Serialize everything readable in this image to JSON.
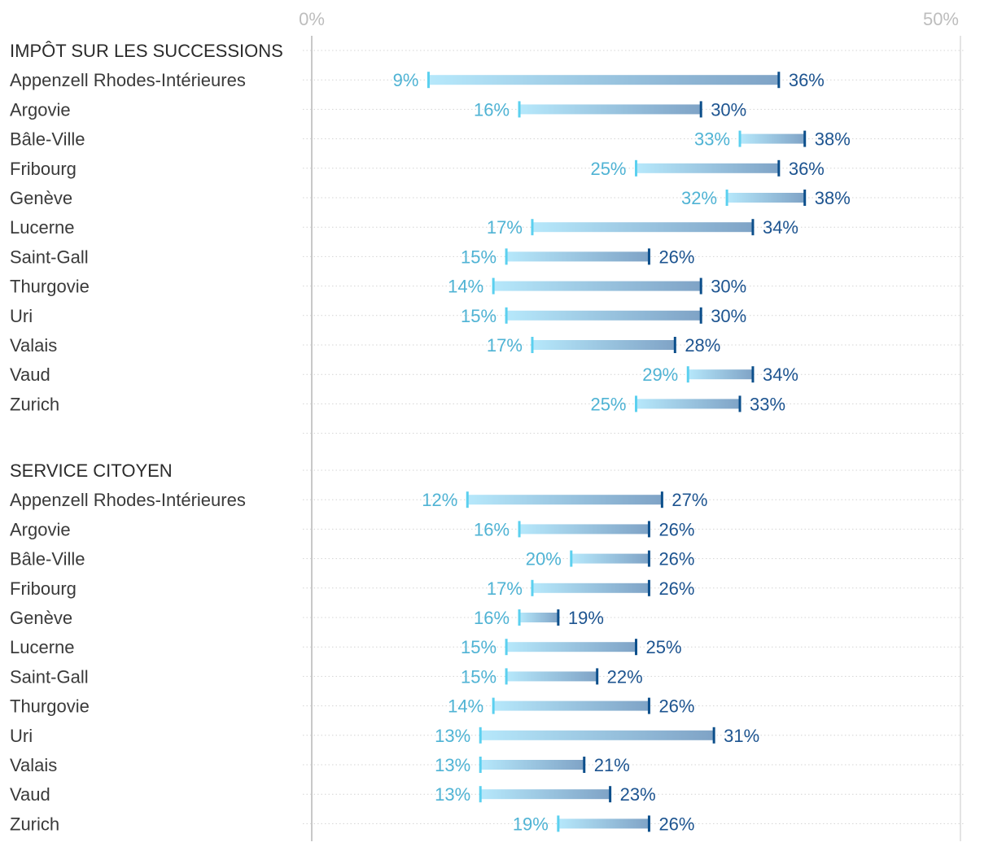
{
  "chart_data": {
    "type": "dumbbell",
    "xlim": [
      0,
      50
    ],
    "x_ticks": [
      {
        "value": 0,
        "label": "0%"
      },
      {
        "value": 50,
        "label": "50%"
      }
    ],
    "grid": "dotted horizontal lines per row",
    "colors": {
      "min_marker": "#5bd0ef",
      "min_label": "#4fb3d4",
      "max_marker": "#0d4f8b",
      "max_label": "#1d5490",
      "bar_start": "#b6e8fb",
      "bar_end": "#7fa3c6",
      "axis": "#c8c8c8",
      "grid": "#d4d4d4"
    },
    "sections": [
      {
        "title": "IMPÔT SUR LES SUCCESSIONS",
        "rows": [
          {
            "label": "Appenzell Rhodes-Intérieures",
            "min": 9,
            "max": 36,
            "min_label": "9%",
            "max_label": "36%"
          },
          {
            "label": "Argovie",
            "min": 16,
            "max": 30,
            "min_label": "16%",
            "max_label": "30%"
          },
          {
            "label": "Bâle-Ville",
            "min": 33,
            "max": 38,
            "min_label": "33%",
            "max_label": "38%"
          },
          {
            "label": "Fribourg",
            "min": 25,
            "max": 36,
            "min_label": "25%",
            "max_label": "36%"
          },
          {
            "label": "Genève",
            "min": 32,
            "max": 38,
            "min_label": "32%",
            "max_label": "38%"
          },
          {
            "label": "Lucerne",
            "min": 17,
            "max": 34,
            "min_label": "17%",
            "max_label": "34%"
          },
          {
            "label": "Saint-Gall",
            "min": 15,
            "max": 26,
            "min_label": "15%",
            "max_label": "26%"
          },
          {
            "label": "Thurgovie",
            "min": 14,
            "max": 30,
            "min_label": "14%",
            "max_label": "30%"
          },
          {
            "label": "Uri",
            "min": 15,
            "max": 30,
            "min_label": "15%",
            "max_label": "30%"
          },
          {
            "label": "Valais",
            "min": 17,
            "max": 28,
            "min_label": "17%",
            "max_label": "28%"
          },
          {
            "label": "Vaud",
            "min": 29,
            "max": 34,
            "min_label": "29%",
            "max_label": "34%"
          },
          {
            "label": "Zurich",
            "min": 25,
            "max": 33,
            "min_label": "25%",
            "max_label": "33%"
          }
        ]
      },
      {
        "title": "SERVICE CITOYEN",
        "rows": [
          {
            "label": "Appenzell Rhodes-Intérieures",
            "min": 12,
            "max": 27,
            "min_label": "12%",
            "max_label": "27%"
          },
          {
            "label": "Argovie",
            "min": 16,
            "max": 26,
            "min_label": "16%",
            "max_label": "26%"
          },
          {
            "label": "Bâle-Ville",
            "min": 20,
            "max": 26,
            "min_label": "20%",
            "max_label": "26%"
          },
          {
            "label": "Fribourg",
            "min": 17,
            "max": 26,
            "min_label": "17%",
            "max_label": "26%"
          },
          {
            "label": "Genève",
            "min": 16,
            "max": 19,
            "min_label": "16%",
            "max_label": "19%"
          },
          {
            "label": "Lucerne",
            "min": 15,
            "max": 25,
            "min_label": "15%",
            "max_label": "25%"
          },
          {
            "label": "Saint-Gall",
            "min": 15,
            "max": 22,
            "min_label": "15%",
            "max_label": "22%"
          },
          {
            "label": "Thurgovie",
            "min": 14,
            "max": 26,
            "min_label": "14%",
            "max_label": "26%"
          },
          {
            "label": "Uri",
            "min": 13,
            "max": 31,
            "min_label": "13%",
            "max_label": "31%"
          },
          {
            "label": "Valais",
            "min": 13,
            "max": 21,
            "min_label": "13%",
            "max_label": "21%"
          },
          {
            "label": "Vaud",
            "min": 13,
            "max": 23,
            "min_label": "13%",
            "max_label": "23%"
          },
          {
            "label": "Zurich",
            "min": 19,
            "max": 26,
            "min_label": "19%",
            "max_label": "26%"
          }
        ]
      }
    ]
  }
}
